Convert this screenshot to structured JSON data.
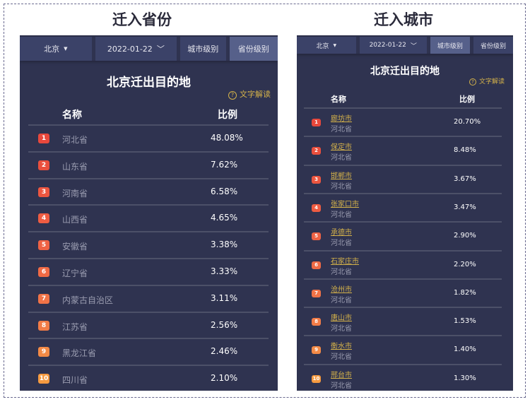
{
  "headings": {
    "left": "迁入省份",
    "right": "迁入城市"
  },
  "left": {
    "toolbar": {
      "city": "北京",
      "date": "2022-01-22",
      "tab_city": "城市级别",
      "tab_province": "省份级别",
      "active": "省份级别"
    },
    "title": "北京迁出目的地",
    "help": "文字解读",
    "col_name": "名称",
    "col_pct": "比例",
    "rows": [
      {
        "rank": "1",
        "name": "河北省",
        "pct": "48.08%"
      },
      {
        "rank": "2",
        "name": "山东省",
        "pct": "7.62%"
      },
      {
        "rank": "3",
        "name": "河南省",
        "pct": "6.58%"
      },
      {
        "rank": "4",
        "name": "山西省",
        "pct": "4.65%"
      },
      {
        "rank": "5",
        "name": "安徽省",
        "pct": "3.38%"
      },
      {
        "rank": "6",
        "name": "辽宁省",
        "pct": "3.33%"
      },
      {
        "rank": "7",
        "name": "内蒙古自治区",
        "pct": "3.11%"
      },
      {
        "rank": "8",
        "name": "江苏省",
        "pct": "2.56%"
      },
      {
        "rank": "9",
        "name": "黑龙江省",
        "pct": "2.46%"
      },
      {
        "rank": "10",
        "name": "四川省",
        "pct": "2.10%"
      }
    ]
  },
  "right": {
    "toolbar": {
      "city": "北京",
      "date": "2022-01-22",
      "tab_city": "城市级别",
      "tab_province": "省份级别",
      "active": "城市级别"
    },
    "title": "北京迁出目的地",
    "help": "文字解读",
    "col_name": "名称",
    "col_pct": "比例",
    "rows": [
      {
        "rank": "1",
        "city": "廊坊市",
        "province": "河北省",
        "pct": "20.70%"
      },
      {
        "rank": "2",
        "city": "保定市",
        "province": "河北省",
        "pct": "8.48%"
      },
      {
        "rank": "3",
        "city": "邯郸市",
        "province": "河北省",
        "pct": "3.67%"
      },
      {
        "rank": "4",
        "city": "张家口市",
        "province": "河北省",
        "pct": "3.47%"
      },
      {
        "rank": "5",
        "city": "承德市",
        "province": "河北省",
        "pct": "2.90%"
      },
      {
        "rank": "6",
        "city": "石家庄市",
        "province": "河北省",
        "pct": "2.20%"
      },
      {
        "rank": "7",
        "city": "沧州市",
        "province": "河北省",
        "pct": "1.82%"
      },
      {
        "rank": "8",
        "city": "唐山市",
        "province": "河北省",
        "pct": "1.53%"
      },
      {
        "rank": "9",
        "city": "衡水市",
        "province": "河北省",
        "pct": "1.40%"
      },
      {
        "rank": "10",
        "city": "邢台市",
        "province": "河北省",
        "pct": "1.30%"
      }
    ]
  },
  "colors": {
    "badges": [
      "#e8483c",
      "#ea4f3d",
      "#ec5640",
      "#ee5c42",
      "#ef6244",
      "#f06a45",
      "#f17347",
      "#f27c47",
      "#f38a46",
      "#f59a40"
    ],
    "link": "#d4b24a",
    "panel": "#2f3350"
  }
}
